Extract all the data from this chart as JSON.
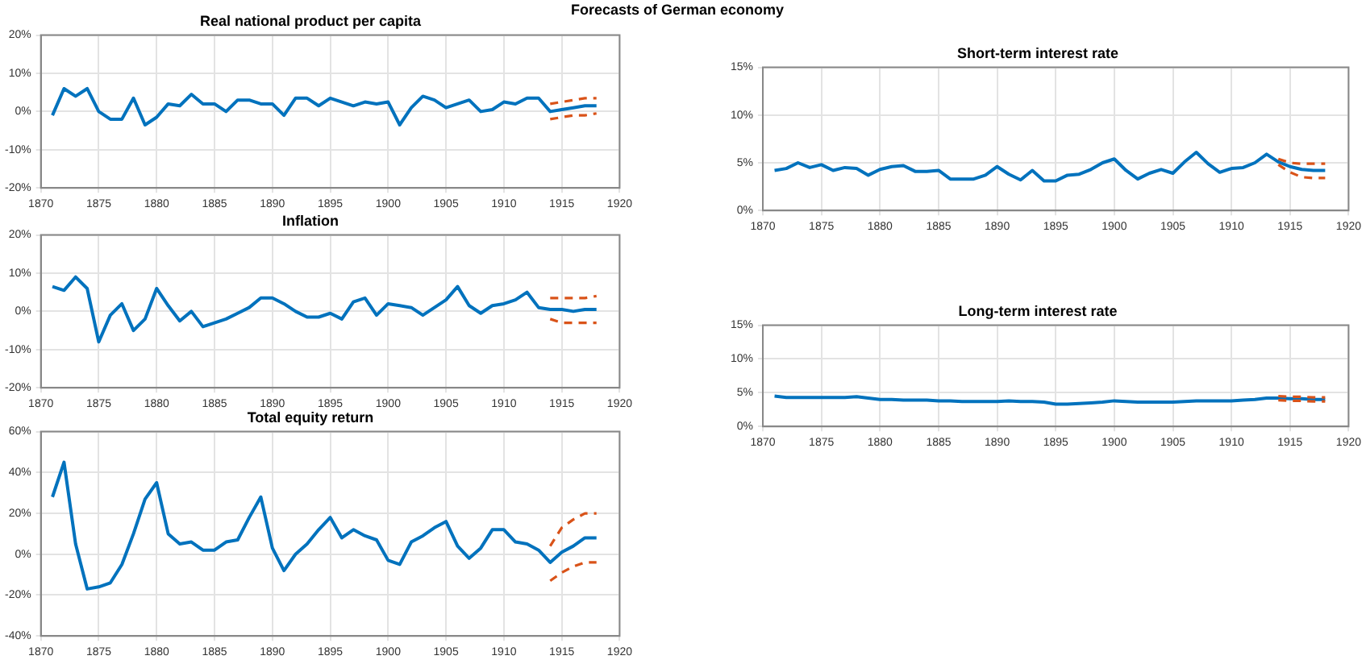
{
  "chart_data": [
    {
      "type": "line",
      "title": "Real national product per capita",
      "annotations": [
        "Forecasts of German economy"
      ],
      "xlim": [
        1870,
        1920
      ],
      "xticks": [
        1870,
        1875,
        1880,
        1885,
        1890,
        1895,
        1900,
        1905,
        1910,
        1915,
        1920
      ],
      "ylim": [
        -20,
        20
      ],
      "yticks": [
        {
          "value": -20,
          "label": "-20%"
        },
        {
          "value": -10,
          "label": "-10%"
        },
        {
          "value": 0,
          "label": "0%"
        },
        {
          "value": 10,
          "label": "10%"
        },
        {
          "value": 20,
          "label": "20%"
        }
      ],
      "grid": true,
      "legend": false,
      "marker": "none",
      "series": [
        {
          "color": "#0072bd",
          "line_style": "solid",
          "x": [
            1871,
            1872,
            1873,
            1874,
            1875,
            1876,
            1877,
            1878,
            1879,
            1880,
            1881,
            1882,
            1883,
            1884,
            1885,
            1886,
            1887,
            1888,
            1889,
            1890,
            1891,
            1892,
            1893,
            1894,
            1895,
            1896,
            1897,
            1898,
            1899,
            1900,
            1901,
            1902,
            1903,
            1904,
            1905,
            1906,
            1907,
            1908,
            1909,
            1910,
            1911,
            1912,
            1913,
            1914,
            1915,
            1916,
            1917,
            1918
          ],
          "values": [
            -1,
            6,
            4,
            6,
            0,
            -2,
            -2,
            3.5,
            -3.5,
            -1.5,
            2,
            1.5,
            4.5,
            2,
            2,
            0,
            3,
            3,
            2,
            2,
            -1,
            3.5,
            3.5,
            1.5,
            3.5,
            2.5,
            1.5,
            2.5,
            2,
            2.5,
            -3.5,
            1,
            4,
            3,
            1,
            2,
            3,
            0,
            0.5,
            2.5,
            2,
            3.5,
            3.5,
            0,
            0.5,
            1,
            1.5,
            1.5
          ]
        },
        {
          "color": "#d95319",
          "line_style": "dashed",
          "x": [
            1914,
            1915,
            1916,
            1917,
            1918
          ],
          "values": [
            -2,
            -1.5,
            -1,
            -1,
            -0.5
          ]
        },
        {
          "color": "#d95319",
          "line_style": "dashed",
          "x": [
            1914,
            1915,
            1916,
            1917,
            1918
          ],
          "values": [
            2,
            2.5,
            3,
            3.5,
            3.5
          ]
        }
      ]
    },
    {
      "type": "line",
      "title": "Inflation",
      "xlim": [
        1870,
        1920
      ],
      "xticks": [
        1870,
        1875,
        1880,
        1885,
        1890,
        1895,
        1900,
        1905,
        1910,
        1915,
        1920
      ],
      "ylim": [
        -20,
        20
      ],
      "yticks": [
        {
          "value": -20,
          "label": "-20%"
        },
        {
          "value": -10,
          "label": "-10%"
        },
        {
          "value": 0,
          "label": "0%"
        },
        {
          "value": 10,
          "label": "10%"
        },
        {
          "value": 20,
          "label": "20%"
        }
      ],
      "grid": true,
      "legend": false,
      "marker": "none",
      "series": [
        {
          "color": "#0072bd",
          "line_style": "solid",
          "x": [
            1871,
            1872,
            1873,
            1874,
            1875,
            1876,
            1877,
            1878,
            1879,
            1880,
            1881,
            1882,
            1883,
            1884,
            1885,
            1886,
            1887,
            1888,
            1889,
            1890,
            1891,
            1892,
            1893,
            1894,
            1895,
            1896,
            1897,
            1898,
            1899,
            1900,
            1901,
            1902,
            1903,
            1904,
            1905,
            1906,
            1907,
            1908,
            1909,
            1910,
            1911,
            1912,
            1913,
            1914,
            1915,
            1916,
            1917,
            1918
          ],
          "values": [
            6.5,
            5.5,
            9,
            6,
            -8,
            -1,
            2,
            -5,
            -2,
            6,
            1.5,
            -2.5,
            0,
            -4,
            -3,
            -2,
            -0.5,
            1,
            3.5,
            3.5,
            2,
            0,
            -1.5,
            -1.5,
            -0.5,
            -2,
            2.5,
            3.5,
            -1,
            2,
            1.5,
            1,
            -1,
            1,
            3,
            6.5,
            1.5,
            -0.5,
            1.5,
            2,
            3,
            5,
            1,
            0.5,
            0.5,
            0,
            0.5,
            0.5
          ]
        },
        {
          "color": "#d95319",
          "line_style": "dashed",
          "x": [
            1914,
            1915,
            1916,
            1917,
            1918
          ],
          "values": [
            -2,
            -3,
            -3,
            -3,
            -3
          ]
        },
        {
          "color": "#d95319",
          "line_style": "dashed",
          "x": [
            1914,
            1915,
            1916,
            1917,
            1918
          ],
          "values": [
            3.5,
            3.5,
            3.5,
            3.5,
            4
          ]
        }
      ]
    },
    {
      "type": "line",
      "title": "Total equity return",
      "xlim": [
        1870,
        1920
      ],
      "xticks": [
        1870,
        1875,
        1880,
        1885,
        1890,
        1895,
        1900,
        1905,
        1910,
        1915,
        1920
      ],
      "ylim": [
        -40,
        60
      ],
      "yticks": [
        {
          "value": -40,
          "label": "-40%"
        },
        {
          "value": -20,
          "label": "-20%"
        },
        {
          "value": 0,
          "label": "0%"
        },
        {
          "value": 20,
          "label": "20%"
        },
        {
          "value": 40,
          "label": "40%"
        },
        {
          "value": 60,
          "label": "60%"
        }
      ],
      "grid": true,
      "legend": false,
      "marker": "none",
      "series": [
        {
          "color": "#0072bd",
          "line_style": "solid",
          "x": [
            1871,
            1872,
            1873,
            1874,
            1875,
            1876,
            1877,
            1878,
            1879,
            1880,
            1881,
            1882,
            1883,
            1884,
            1885,
            1886,
            1887,
            1888,
            1889,
            1890,
            1891,
            1892,
            1893,
            1894,
            1895,
            1896,
            1897,
            1898,
            1899,
            1900,
            1901,
            1902,
            1903,
            1904,
            1905,
            1906,
            1907,
            1908,
            1909,
            1910,
            1911,
            1912,
            1913,
            1914,
            1915,
            1916,
            1917,
            1918
          ],
          "values": [
            28,
            45,
            5,
            -17,
            -16,
            -14,
            -5,
            10,
            27,
            35,
            10,
            5,
            6,
            2,
            2,
            6,
            7,
            18,
            28,
            3,
            -8,
            0,
            5,
            12,
            18,
            8,
            12,
            9,
            7,
            -3,
            -5,
            6,
            9,
            13,
            16,
            4,
            -2,
            3,
            12,
            12,
            6,
            5,
            2,
            -4,
            1,
            4,
            8,
            8
          ]
        },
        {
          "color": "#d95319",
          "line_style": "dashed",
          "x": [
            1914,
            1915,
            1916,
            1917,
            1918
          ],
          "values": [
            -13,
            -9,
            -6,
            -4,
            -4
          ]
        },
        {
          "color": "#d95319",
          "line_style": "dashed",
          "x": [
            1914,
            1915,
            1916,
            1917,
            1918
          ],
          "values": [
            4,
            13,
            17,
            20,
            20
          ]
        }
      ]
    },
    {
      "type": "line",
      "title": "Short-term interest rate",
      "xlim": [
        1870,
        1920
      ],
      "xticks": [
        1870,
        1875,
        1880,
        1885,
        1890,
        1895,
        1900,
        1905,
        1910,
        1915,
        1920
      ],
      "ylim": [
        0,
        15
      ],
      "yticks": [
        {
          "value": 0,
          "label": "0%"
        },
        {
          "value": 5,
          "label": "5%"
        },
        {
          "value": 10,
          "label": "10%"
        },
        {
          "value": 15,
          "label": "15%"
        }
      ],
      "grid": true,
      "legend": false,
      "marker": "none",
      "series": [
        {
          "color": "#0072bd",
          "line_style": "solid",
          "x": [
            1871,
            1872,
            1873,
            1874,
            1875,
            1876,
            1877,
            1878,
            1879,
            1880,
            1881,
            1882,
            1883,
            1884,
            1885,
            1886,
            1887,
            1888,
            1889,
            1890,
            1891,
            1892,
            1893,
            1894,
            1895,
            1896,
            1897,
            1898,
            1899,
            1900,
            1901,
            1902,
            1903,
            1904,
            1905,
            1906,
            1907,
            1908,
            1909,
            1910,
            1911,
            1912,
            1913,
            1914,
            1915,
            1916,
            1917,
            1918
          ],
          "values": [
            4.2,
            4.4,
            5,
            4.5,
            4.8,
            4.2,
            4.5,
            4.4,
            3.7,
            4.3,
            4.6,
            4.7,
            4.1,
            4.1,
            4.2,
            3.3,
            3.3,
            3.3,
            3.7,
            4.6,
            3.8,
            3.2,
            4.2,
            3.1,
            3.1,
            3.7,
            3.8,
            4.3,
            5,
            5.4,
            4.2,
            3.3,
            3.9,
            4.3,
            3.9,
            5.1,
            6.1,
            4.9,
            4,
            4.4,
            4.5,
            5,
            5.9,
            5.1,
            4.6,
            4.3,
            4.2,
            4.2
          ]
        },
        {
          "color": "#d95319",
          "line_style": "dashed",
          "x": [
            1914,
            1915,
            1916,
            1917,
            1918
          ],
          "values": [
            4.8,
            4,
            3.5,
            3.4,
            3.4
          ]
        },
        {
          "color": "#d95319",
          "line_style": "dashed",
          "x": [
            1914,
            1915,
            1916,
            1917,
            1918
          ],
          "values": [
            5.4,
            5,
            4.9,
            4.9,
            4.9
          ]
        }
      ]
    },
    {
      "type": "line",
      "title": "Long-term interest rate",
      "xlim": [
        1870,
        1920
      ],
      "xticks": [
        1870,
        1875,
        1880,
        1885,
        1890,
        1895,
        1900,
        1905,
        1910,
        1915,
        1920
      ],
      "ylim": [
        0,
        15
      ],
      "yticks": [
        {
          "value": 0,
          "label": "0%"
        },
        {
          "value": 5,
          "label": "5%"
        },
        {
          "value": 10,
          "label": "10%"
        },
        {
          "value": 15,
          "label": "15%"
        }
      ],
      "grid": true,
      "legend": false,
      "marker": "none",
      "series": [
        {
          "color": "#0072bd",
          "line_style": "solid",
          "x": [
            1871,
            1872,
            1873,
            1874,
            1875,
            1876,
            1877,
            1878,
            1879,
            1880,
            1881,
            1882,
            1883,
            1884,
            1885,
            1886,
            1887,
            1888,
            1889,
            1890,
            1891,
            1892,
            1893,
            1894,
            1895,
            1896,
            1897,
            1898,
            1899,
            1900,
            1901,
            1902,
            1903,
            1904,
            1905,
            1906,
            1907,
            1908,
            1909,
            1910,
            1911,
            1912,
            1913,
            1914,
            1915,
            1916,
            1917,
            1918
          ],
          "values": [
            4.5,
            4.3,
            4.3,
            4.3,
            4.3,
            4.3,
            4.3,
            4.4,
            4.2,
            4,
            4,
            3.9,
            3.9,
            3.9,
            3.8,
            3.8,
            3.7,
            3.7,
            3.7,
            3.7,
            3.8,
            3.7,
            3.7,
            3.6,
            3.3,
            3.3,
            3.4,
            3.5,
            3.6,
            3.8,
            3.7,
            3.6,
            3.6,
            3.6,
            3.6,
            3.7,
            3.8,
            3.8,
            3.8,
            3.8,
            3.9,
            4,
            4.2,
            4.2,
            4.1,
            4.1,
            4,
            4
          ]
        },
        {
          "color": "#d95319",
          "line_style": "dashed",
          "x": [
            1914,
            1915,
            1916,
            1917,
            1918
          ],
          "values": [
            3.9,
            3.8,
            3.8,
            3.7,
            3.7
          ]
        },
        {
          "color": "#d95319",
          "line_style": "dashed",
          "x": [
            1914,
            1915,
            1916,
            1917,
            1918
          ],
          "values": [
            4.5,
            4.4,
            4.4,
            4.3,
            4.3
          ]
        }
      ]
    }
  ]
}
